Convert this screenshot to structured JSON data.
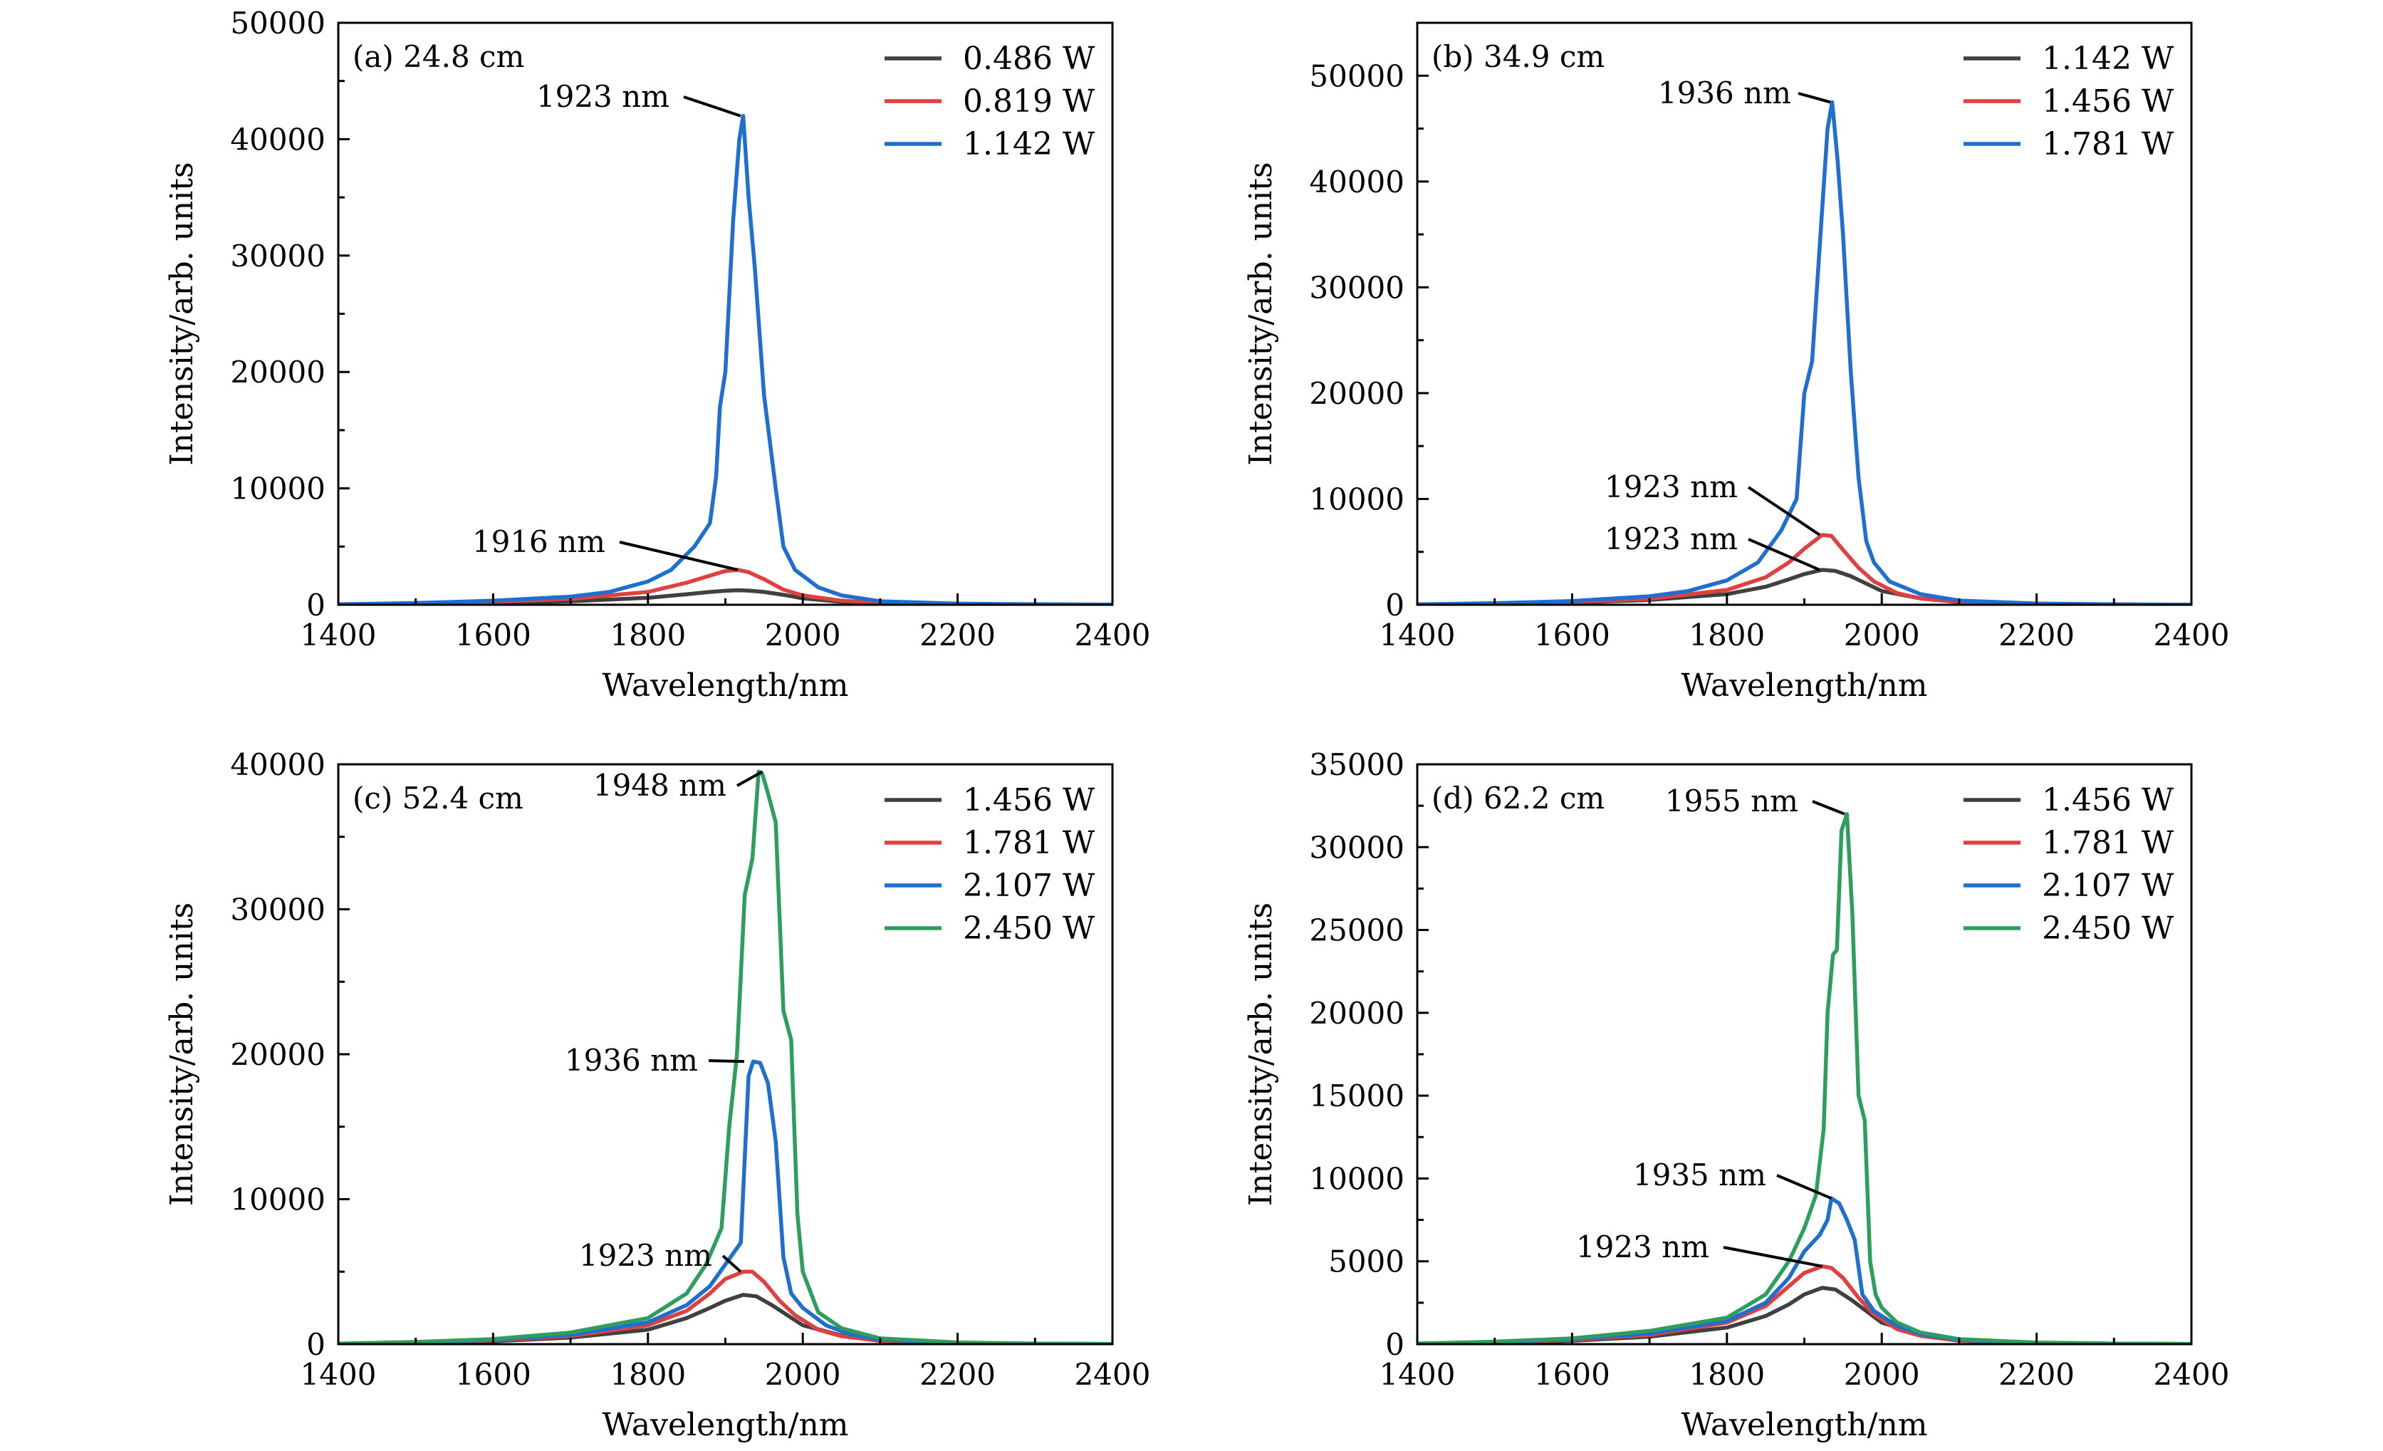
{
  "chart_data": [
    {
      "type": "line",
      "panel_label": "(a) 24.8 cm",
      "xlabel": "Wavelength/nm",
      "ylabel": "Intensity/arb. units",
      "xlim": [
        1400,
        2400
      ],
      "ylim": [
        0,
        50000
      ],
      "xticks": [
        1400,
        1600,
        1800,
        2000,
        2200,
        2400
      ],
      "yticks": [
        0,
        10000,
        20000,
        30000,
        40000,
        50000
      ],
      "legend_position": "top-right",
      "series": [
        {
          "name": "0.486 W",
          "color": "#404040",
          "x": [
            1400,
            1500,
            1600,
            1700,
            1800,
            1850,
            1880,
            1900,
            1916,
            1930,
            1950,
            1980,
            2000,
            2050,
            2100,
            2200,
            2300,
            2400
          ],
          "y": [
            20,
            60,
            150,
            300,
            600,
            900,
            1100,
            1200,
            1250,
            1220,
            1100,
            800,
            550,
            250,
            120,
            50,
            20,
            10
          ]
        },
        {
          "name": "0.819 W",
          "color": "#e04040",
          "x": [
            1400,
            1500,
            1600,
            1700,
            1800,
            1850,
            1880,
            1900,
            1916,
            1930,
            1950,
            1975,
            2000,
            2050,
            2100,
            2200,
            2300,
            2400
          ],
          "y": [
            30,
            100,
            250,
            500,
            1100,
            1900,
            2500,
            2900,
            3000,
            2800,
            2200,
            1300,
            800,
            350,
            150,
            60,
            25,
            10
          ]
        },
        {
          "name": "1.142 W",
          "color": "#1f6fd0",
          "x": [
            1400,
            1500,
            1600,
            1700,
            1750,
            1800,
            1830,
            1860,
            1880,
            1888,
            1893,
            1900,
            1910,
            1918,
            1923,
            1930,
            1938,
            1950,
            1965,
            1975,
            1990,
            2020,
            2050,
            2100,
            2200,
            2300,
            2400
          ],
          "y": [
            40,
            150,
            350,
            700,
            1100,
            2000,
            3000,
            5000,
            7000,
            11000,
            17000,
            20000,
            33000,
            40000,
            42000,
            35000,
            29000,
            18000,
            10000,
            5000,
            3000,
            1500,
            800,
            300,
            100,
            40,
            10
          ]
        }
      ],
      "annotations": [
        {
          "text": "1923 nm",
          "x": 1923,
          "y": 42000
        },
        {
          "text": "1916 nm",
          "x": 1916,
          "y": 3000
        }
      ]
    },
    {
      "type": "line",
      "panel_label": "(b) 34.9 cm",
      "xlabel": "Wavelength/nm",
      "ylabel": "Intensity/arb. units",
      "xlim": [
        1400,
        2400
      ],
      "ylim": [
        0,
        55000
      ],
      "xticks": [
        1400,
        1600,
        1800,
        2000,
        2200,
        2400
      ],
      "yticks": [
        0,
        10000,
        20000,
        30000,
        40000,
        50000
      ],
      "legend_position": "top-right",
      "series": [
        {
          "name": "1.142 W",
          "color": "#404040",
          "x": [
            1400,
            1500,
            1600,
            1700,
            1800,
            1850,
            1880,
            1900,
            1923,
            1940,
            1960,
            1980,
            2000,
            2050,
            2100,
            2200,
            2300,
            2400
          ],
          "y": [
            20,
            80,
            200,
            450,
            1000,
            1700,
            2400,
            2900,
            3300,
            3200,
            2700,
            2000,
            1300,
            600,
            250,
            80,
            30,
            10
          ]
        },
        {
          "name": "1.456 W",
          "color": "#e04040",
          "x": [
            1400,
            1500,
            1600,
            1700,
            1800,
            1850,
            1880,
            1900,
            1923,
            1935,
            1950,
            1970,
            1990,
            2020,
            2050,
            2100,
            2200,
            2300,
            2400
          ],
          "y": [
            30,
            100,
            260,
            550,
            1400,
            2600,
            4000,
            5300,
            6600,
            6500,
            5200,
            3500,
            2200,
            1100,
            600,
            250,
            80,
            30,
            10
          ]
        },
        {
          "name": "1.781 W",
          "color": "#1f6fd0",
          "x": [
            1400,
            1500,
            1600,
            1700,
            1750,
            1800,
            1840,
            1870,
            1890,
            1900,
            1910,
            1920,
            1930,
            1936,
            1943,
            1950,
            1960,
            1970,
            1980,
            1990,
            2010,
            2050,
            2100,
            2200,
            2300,
            2400
          ],
          "y": [
            40,
            150,
            350,
            800,
            1300,
            2300,
            4000,
            7000,
            10000,
            20000,
            23000,
            34000,
            45000,
            47500,
            42000,
            35000,
            22000,
            12000,
            6000,
            4000,
            2200,
            1000,
            400,
            120,
            40,
            10
          ]
        }
      ],
      "annotations": [
        {
          "text": "1936 nm",
          "x": 1936,
          "y": 47500
        },
        {
          "text": "1923 nm",
          "x": 1923,
          "y": 6600
        },
        {
          "text": "1923 nm",
          "x": 1923,
          "y": 3300
        }
      ]
    },
    {
      "type": "line",
      "panel_label": "(c) 52.4 cm",
      "xlabel": "Wavelength/nm",
      "ylabel": "Intensity/arb. units",
      "xlim": [
        1400,
        2400
      ],
      "ylim": [
        0,
        40000
      ],
      "xticks": [
        1400,
        1600,
        1800,
        2000,
        2200,
        2400
      ],
      "yticks": [
        0,
        10000,
        20000,
        30000,
        40000
      ],
      "legend_position": "top-right",
      "series": [
        {
          "name": "1.456 W",
          "color": "#404040",
          "x": [
            1400,
            1500,
            1600,
            1700,
            1800,
            1850,
            1880,
            1900,
            1923,
            1940,
            1960,
            1980,
            2000,
            2050,
            2100,
            2200,
            2300,
            2400
          ],
          "y": [
            20,
            80,
            200,
            450,
            1000,
            1800,
            2500,
            3000,
            3400,
            3300,
            2700,
            2000,
            1300,
            600,
            250,
            80,
            30,
            10
          ]
        },
        {
          "name": "1.781 W",
          "color": "#e04040",
          "x": [
            1400,
            1500,
            1600,
            1700,
            1800,
            1850,
            1880,
            1900,
            1923,
            1935,
            1950,
            1970,
            1990,
            2020,
            2050,
            2100,
            2200,
            2300,
            2400
          ],
          "y": [
            30,
            100,
            260,
            550,
            1300,
            2300,
            3500,
            4500,
            5000,
            5000,
            4300,
            3000,
            2000,
            1000,
            550,
            220,
            70,
            25,
            10
          ]
        },
        {
          "name": "2.107 W",
          "color": "#1f6fd0",
          "x": [
            1400,
            1500,
            1600,
            1700,
            1800,
            1850,
            1880,
            1900,
            1920,
            1930,
            1936,
            1945,
            1955,
            1965,
            1975,
            1985,
            2000,
            2030,
            2060,
            2100,
            2200,
            2300,
            2400
          ],
          "y": [
            30,
            120,
            300,
            650,
            1500,
            2700,
            4000,
            5500,
            7000,
            18500,
            19500,
            19400,
            18000,
            14000,
            6000,
            3500,
            2500,
            1300,
            700,
            300,
            100,
            35,
            10
          ]
        },
        {
          "name": "2.450 W",
          "color": "#2e9e5e",
          "x": [
            1400,
            1500,
            1600,
            1700,
            1800,
            1850,
            1875,
            1895,
            1905,
            1915,
            1925,
            1935,
            1943,
            1948,
            1955,
            1965,
            1975,
            1985,
            1993,
            2000,
            2020,
            2050,
            2100,
            2200,
            2300,
            2400
          ],
          "y": [
            40,
            150,
            350,
            800,
            1800,
            3500,
            5500,
            8000,
            15000,
            20000,
            31000,
            33500,
            39500,
            39300,
            38000,
            36000,
            23000,
            21000,
            9000,
            5000,
            2200,
            1100,
            400,
            120,
            40,
            10
          ]
        }
      ],
      "annotations": [
        {
          "text": "1948 nm",
          "x": 1948,
          "y": 39500
        },
        {
          "text": "1936 nm",
          "x": 1936,
          "y": 19500
        },
        {
          "text": "1923 nm",
          "x": 1923,
          "y": 5000
        }
      ]
    },
    {
      "type": "line",
      "panel_label": "(d) 62.2 cm",
      "xlabel": "Wavelength/nm",
      "ylabel": "Intensity/arb. units",
      "xlim": [
        1400,
        2400
      ],
      "ylim": [
        0,
        35000
      ],
      "xticks": [
        1400,
        1600,
        1800,
        2000,
        2200,
        2400
      ],
      "yticks": [
        0,
        5000,
        10000,
        15000,
        20000,
        25000,
        30000,
        35000
      ],
      "legend_position": "top-right",
      "series": [
        {
          "name": "1.456 W",
          "color": "#404040",
          "x": [
            1400,
            1500,
            1600,
            1700,
            1800,
            1850,
            1880,
            1900,
            1923,
            1940,
            1960,
            1980,
            2000,
            2050,
            2100,
            2200,
            2300,
            2400
          ],
          "y": [
            20,
            80,
            200,
            450,
            1000,
            1700,
            2400,
            3000,
            3400,
            3300,
            2700,
            2000,
            1300,
            600,
            250,
            80,
            30,
            10
          ]
        },
        {
          "name": "1.781 W",
          "color": "#e04040",
          "x": [
            1400,
            1500,
            1600,
            1700,
            1800,
            1850,
            1880,
            1900,
            1923,
            1935,
            1950,
            1970,
            1990,
            2020,
            2050,
            2100,
            2200,
            2300,
            2400
          ],
          "y": [
            30,
            100,
            260,
            550,
            1300,
            2300,
            3500,
            4300,
            4700,
            4600,
            4000,
            2800,
            1800,
            900,
            500,
            200,
            70,
            25,
            10
          ]
        },
        {
          "name": "2.107 W",
          "color": "#1f6fd0",
          "x": [
            1400,
            1500,
            1600,
            1700,
            1800,
            1850,
            1880,
            1900,
            1920,
            1930,
            1935,
            1945,
            1955,
            1965,
            1975,
            1990,
            2020,
            2050,
            2100,
            2200,
            2300,
            2400
          ],
          "y": [
            30,
            120,
            300,
            650,
            1400,
            2500,
            4000,
            5600,
            6600,
            7500,
            8800,
            8500,
            7500,
            6300,
            3000,
            2000,
            1100,
            600,
            250,
            80,
            30,
            10
          ]
        },
        {
          "name": "2.450 W",
          "color": "#2e9e5e",
          "x": [
            1400,
            1500,
            1600,
            1700,
            1800,
            1850,
            1880,
            1900,
            1915,
            1925,
            1930,
            1937,
            1942,
            1948,
            1955,
            1962,
            1970,
            1978,
            1985,
            1992,
            2000,
            2020,
            2050,
            2100,
            2200,
            2300,
            2400
          ],
          "y": [
            40,
            150,
            350,
            800,
            1600,
            3000,
            5000,
            7000,
            9000,
            13000,
            20000,
            23500,
            23800,
            31000,
            32000,
            26000,
            15000,
            13500,
            5000,
            3000,
            2200,
            1300,
            700,
            300,
            100,
            35,
            10
          ]
        }
      ],
      "annotations": [
        {
          "text": "1955 nm",
          "x": 1955,
          "y": 32000
        },
        {
          "text": "1935 nm",
          "x": 1935,
          "y": 8800
        },
        {
          "text": "1923 nm",
          "x": 1923,
          "y": 4700
        }
      ]
    }
  ]
}
